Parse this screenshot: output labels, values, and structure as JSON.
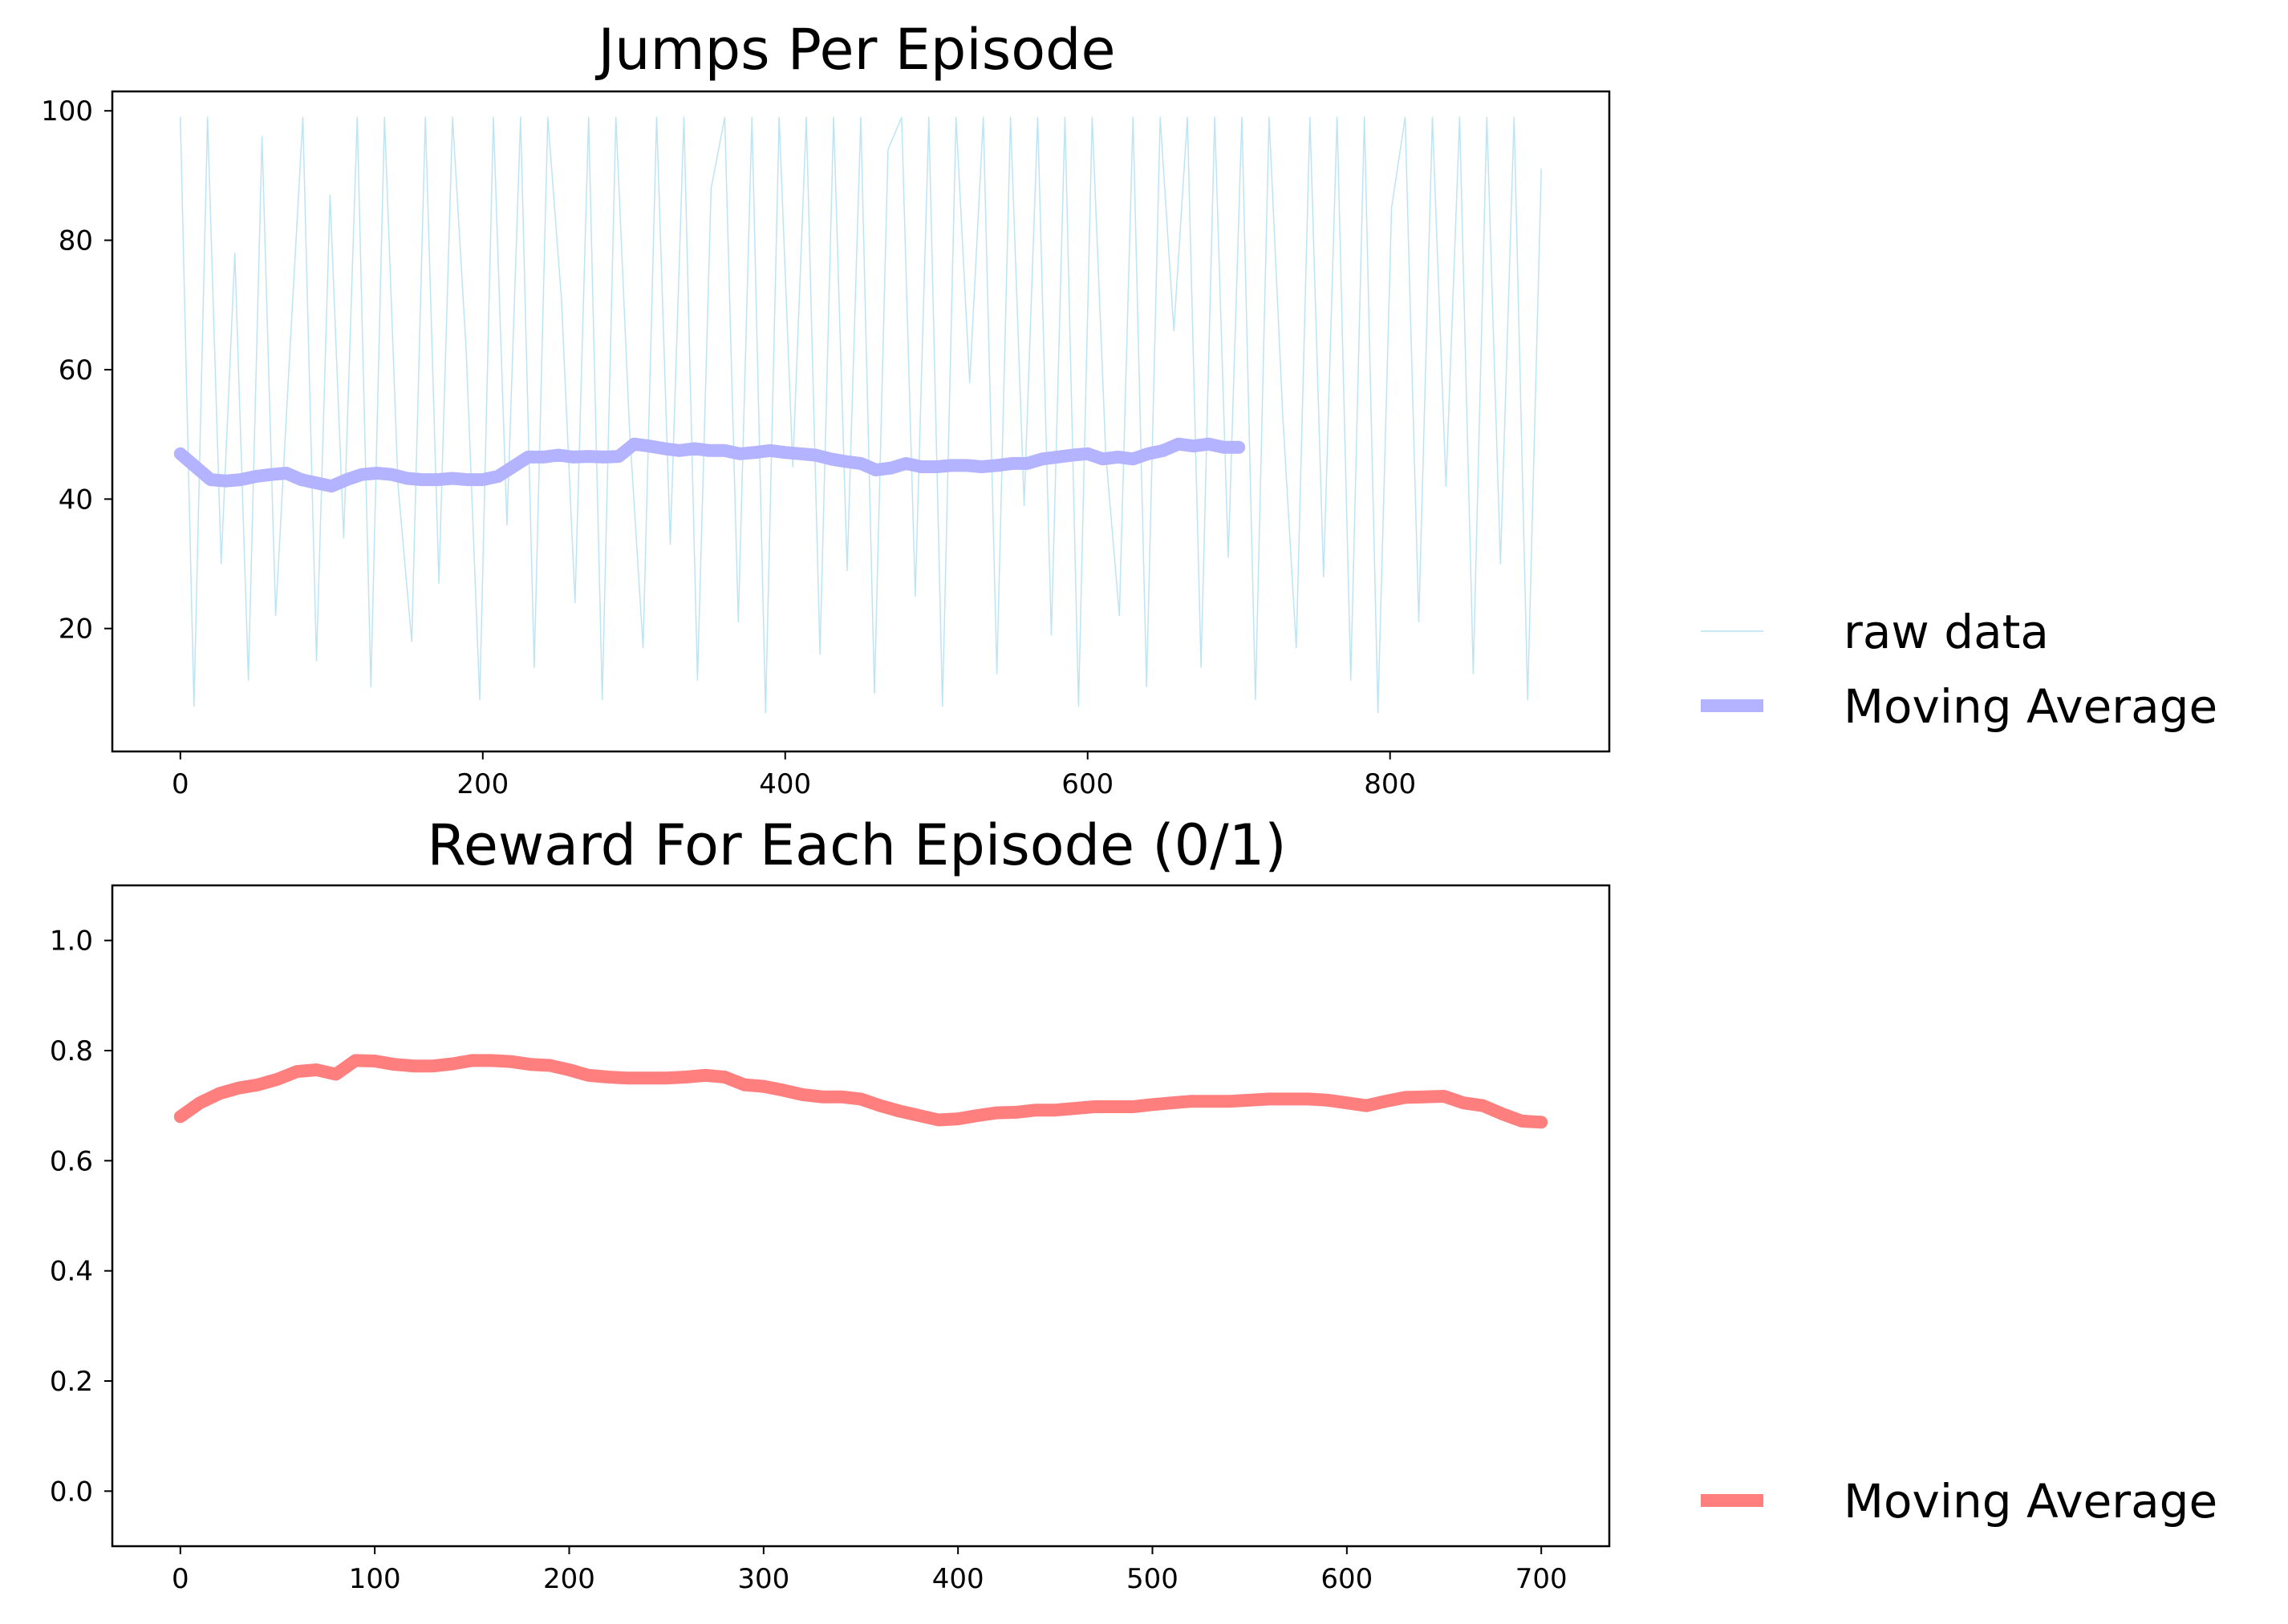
{
  "chart_data": [
    {
      "type": "line",
      "title": "Jumps Per Episode",
      "xlabel": "",
      "ylabel": "",
      "xlim": [
        -45,
        945
      ],
      "ylim": [
        1,
        103
      ],
      "xticks": [
        0,
        200,
        400,
        600,
        800
      ],
      "yticks": [
        20,
        40,
        60,
        80,
        100
      ],
      "grid": false,
      "legend": "right of plot",
      "series": [
        {
          "name": "raw data",
          "color": "#87ceeb",
          "style": "thin line",
          "x": [
            0,
            9,
            18,
            27,
            36,
            45,
            54,
            63,
            72,
            81,
            90,
            99,
            108,
            117,
            126,
            135,
            144,
            153,
            162,
            171,
            180,
            189,
            198,
            207,
            216,
            225,
            234,
            243,
            252,
            261,
            270,
            279,
            288,
            297,
            306,
            315,
            324,
            333,
            342,
            351,
            360,
            369,
            378,
            387,
            396,
            405,
            414,
            423,
            432,
            441,
            450,
            459,
            468,
            477,
            486,
            495,
            504,
            513,
            522,
            531,
            540,
            549,
            558,
            567,
            576,
            585,
            594,
            603,
            612,
            621,
            630,
            639,
            648,
            657,
            666,
            675,
            684,
            693,
            702,
            711,
            720,
            729,
            738,
            747,
            756,
            765,
            774,
            783,
            792,
            801,
            810,
            819,
            828,
            837,
            846,
            855,
            864,
            873,
            882,
            891,
            900
          ],
          "y": [
            99,
            8,
            99,
            30,
            78,
            12,
            96,
            22,
            61,
            99,
            15,
            87,
            34,
            99,
            11,
            99,
            42,
            18,
            99,
            27,
            99,
            63,
            9,
            99,
            36,
            99,
            14,
            99,
            71,
            24,
            99,
            9,
            99,
            51,
            17,
            99,
            33,
            99,
            12,
            88,
            99,
            21,
            99,
            7,
            99,
            45,
            99,
            16,
            99,
            29,
            99,
            10,
            94,
            99,
            25,
            99,
            8,
            99,
            58,
            99,
            13,
            99,
            39,
            99,
            19,
            99,
            8,
            99,
            47,
            22,
            99,
            11,
            99,
            66,
            99,
            14,
            99,
            31,
            99,
            9,
            99,
            53,
            17,
            99,
            28,
            99,
            12,
            99,
            7,
            85,
            99,
            21,
            99,
            42,
            99,
            13,
            99,
            30,
            99,
            9,
            91
          ]
        },
        {
          "name": "Moving Average",
          "color": "#b3b3ff",
          "style": "thick line",
          "x": [
            0,
            10,
            20,
            30,
            40,
            50,
            60,
            70,
            80,
            90,
            100,
            110,
            120,
            130,
            140,
            150,
            160,
            170,
            180,
            190,
            200,
            210,
            220,
            230,
            240,
            250,
            260,
            270,
            280,
            290,
            300,
            310,
            320,
            330,
            340,
            350,
            360,
            370,
            380,
            390,
            400,
            410,
            420,
            430,
            440,
            450,
            460,
            470,
            480,
            490,
            500,
            510,
            520,
            530,
            540,
            550,
            560,
            570,
            580,
            590,
            600,
            610,
            620,
            630,
            640,
            650,
            660,
            670,
            680,
            690,
            700
          ],
          "y": [
            47,
            45,
            43,
            42.8,
            43,
            43.5,
            43.8,
            44,
            43,
            42.5,
            42,
            43,
            43.8,
            44,
            43.8,
            43.2,
            43,
            43,
            43.2,
            43,
            43,
            43.5,
            45,
            46.5,
            46.5,
            46.8,
            46.5,
            46.6,
            46.5,
            46.6,
            48.5,
            48.2,
            47.8,
            47.5,
            47.8,
            47.5,
            47.5,
            47,
            47.2,
            47.5,
            47.2,
            47,
            46.8,
            46.2,
            45.8,
            45.5,
            44.5,
            44.8,
            45.5,
            45,
            45,
            45.2,
            45.2,
            45,
            45.2,
            45.5,
            45.5,
            46.2,
            46.5,
            46.8,
            47,
            46.2,
            46.5,
            46.2,
            47,
            47.5,
            48.5,
            48.2,
            48.5,
            48,
            48
          ]
        }
      ]
    },
    {
      "type": "line",
      "title": "Reward For Each Episode (0/1)",
      "xlabel": "",
      "ylabel": "",
      "xlim": [
        -35,
        735
      ],
      "ylim": [
        -0.1,
        1.1
      ],
      "xticks": [
        0,
        100,
        200,
        300,
        400,
        500,
        600,
        700
      ],
      "yticks": [
        0.0,
        0.2,
        0.4,
        0.6,
        0.8,
        1.0
      ],
      "ytick_labels": [
        "0.0",
        "0.2",
        "0.4",
        "0.6",
        "0.8",
        "1.0"
      ],
      "grid": false,
      "legend": "right of plot",
      "series": [
        {
          "name": "Moving Average",
          "color": "#ff7f7f",
          "style": "thick line",
          "x": [
            0,
            10,
            20,
            30,
            40,
            50,
            60,
            70,
            80,
            90,
            100,
            110,
            120,
            130,
            140,
            150,
            160,
            170,
            180,
            190,
            200,
            210,
            220,
            230,
            240,
            250,
            260,
            270,
            280,
            290,
            300,
            310,
            320,
            330,
            340,
            350,
            360,
            370,
            380,
            390,
            400,
            410,
            420,
            430,
            440,
            450,
            460,
            470,
            480,
            490,
            500,
            510,
            520,
            530,
            540,
            550,
            560,
            570,
            580,
            590,
            600,
            610,
            620,
            630,
            640,
            650,
            660,
            670,
            680,
            690,
            700
          ],
          "y": [
            0.68,
            0.705,
            0.722,
            0.732,
            0.738,
            0.748,
            0.762,
            0.765,
            0.757,
            0.782,
            0.781,
            0.775,
            0.772,
            0.772,
            0.776,
            0.782,
            0.782,
            0.78,
            0.775,
            0.773,
            0.765,
            0.755,
            0.752,
            0.75,
            0.75,
            0.75,
            0.752,
            0.755,
            0.752,
            0.738,
            0.735,
            0.728,
            0.72,
            0.716,
            0.716,
            0.712,
            0.7,
            0.69,
            0.682,
            0.674,
            0.676,
            0.682,
            0.687,
            0.688,
            0.692,
            0.692,
            0.695,
            0.698,
            0.698,
            0.698,
            0.702,
            0.705,
            0.708,
            0.708,
            0.708,
            0.71,
            0.712,
            0.712,
            0.712,
            0.71,
            0.705,
            0.7,
            0.708,
            0.715,
            0.716,
            0.717,
            0.705,
            0.7,
            0.685,
            0.672,
            0.67
          ]
        }
      ]
    }
  ]
}
